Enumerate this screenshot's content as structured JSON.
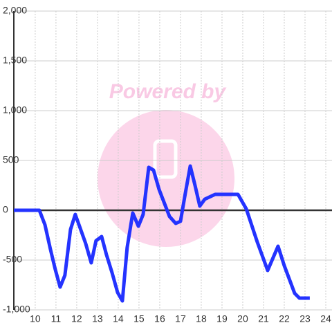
{
  "chart_data": {
    "type": "line",
    "watermark": "Powered by",
    "x": [
      8.97,
      10.2,
      10.47,
      10.73,
      10.97,
      11.2,
      11.43,
      11.7,
      11.93,
      12.17,
      12.43,
      12.7,
      12.93,
      13.2,
      13.43,
      13.7,
      13.97,
      14.2,
      14.43,
      14.7,
      14.97,
      15.2,
      15.47,
      15.7,
      15.97,
      16.47,
      16.77,
      17.0,
      17.23,
      17.47,
      17.7,
      17.93,
      18.17,
      18.67,
      19.77,
      20.17,
      20.7,
      21.2,
      21.7,
      22.0,
      22.5,
      22.73,
      23.23
    ],
    "series": [
      {
        "color": "#2433ff",
        "values": [
          0,
          0,
          -146,
          -389,
          -597,
          -771,
          -653,
          -194,
          -42,
          -181,
          -333,
          -528,
          -306,
          -264,
          -444,
          -625,
          -826,
          -910,
          -375,
          -28,
          -160,
          -42,
          431,
          403,
          208,
          -62,
          -132,
          -111,
          167,
          444,
          250,
          42,
          111,
          160,
          160,
          14,
          -319,
          -604,
          -361,
          -556,
          -833,
          -882,
          -882
        ]
      }
    ],
    "xlim": [
      8.97,
      24.3
    ],
    "xticks": [
      10,
      11,
      12,
      13,
      14,
      15,
      16,
      17,
      18,
      19,
      20,
      21,
      22,
      23,
      24
    ],
    "ylim": [
      -1000,
      2000
    ],
    "yticks": [
      {
        "value": -1000,
        "label": "-1,000"
      },
      -500,
      0,
      500,
      {
        "value": 1000,
        "label": "1,000"
      },
      {
        "value": 1500,
        "label": "1,500"
      },
      {
        "value": 2000,
        "label": "2,000"
      }
    ],
    "grid": true
  }
}
